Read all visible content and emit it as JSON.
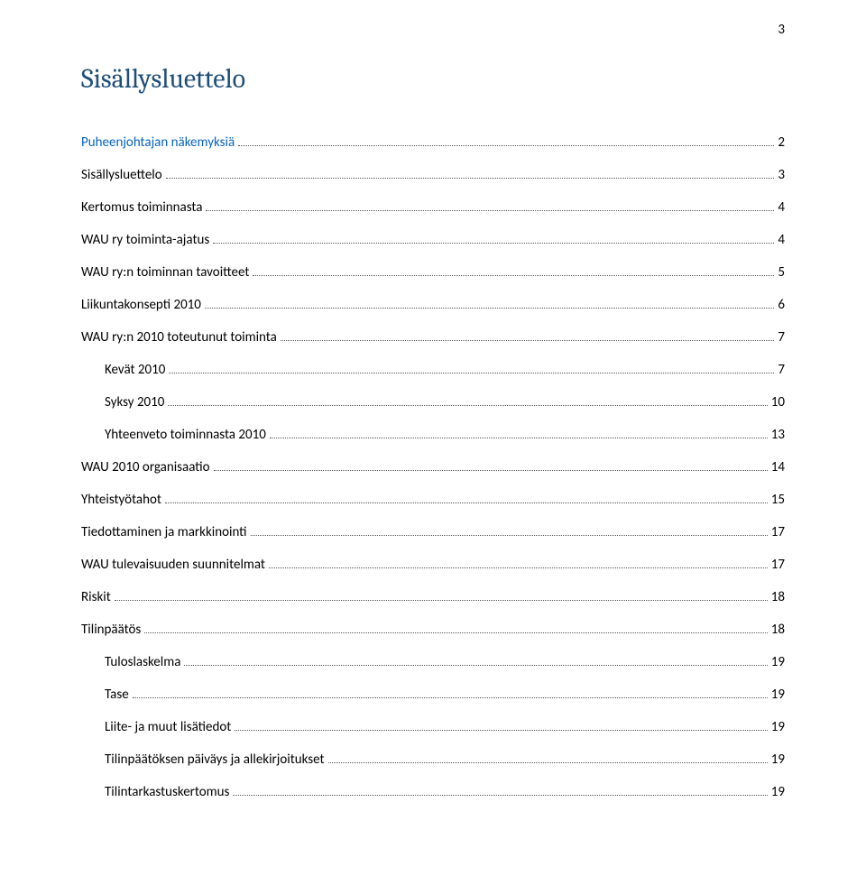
{
  "pageNumber": "3",
  "title": "Sisällysluettelo",
  "colors": {
    "titleColor": "#1f4e79",
    "linkColor": "#0563c1",
    "dotColor": "#555555",
    "textColor": "#000000",
    "background": "#ffffff"
  },
  "typography": {
    "titleFontSize": 30,
    "bodyFontSize": 15
  },
  "toc": {
    "entries": [
      {
        "label": "Puheenjohtajan näkemyksiä",
        "page": "2",
        "indent": 0,
        "link": true
      },
      {
        "label": "Sisällysluettelo",
        "page": "3",
        "indent": 0,
        "link": false
      },
      {
        "label": "Kertomus toiminnasta",
        "page": "4",
        "indent": 0,
        "link": false
      },
      {
        "label": "WAU ry toiminta-ajatus",
        "page": "4",
        "indent": 0,
        "link": false
      },
      {
        "label": "WAU ry:n toiminnan tavoitteet",
        "page": "5",
        "indent": 0,
        "link": false
      },
      {
        "label": "Liikuntakonsepti 2010",
        "page": "6",
        "indent": 0,
        "link": false
      },
      {
        "label": "WAU ry:n 2010 toteutunut toiminta",
        "page": "7",
        "indent": 0,
        "link": false
      },
      {
        "label": "Kevät 2010",
        "page": "7",
        "indent": 1,
        "link": false
      },
      {
        "label": "Syksy 2010",
        "page": "10",
        "indent": 1,
        "link": false
      },
      {
        "label": "Yhteenveto toiminnasta 2010",
        "page": "13",
        "indent": 1,
        "link": false
      },
      {
        "label": "WAU 2010 organisaatio",
        "page": "14",
        "indent": 0,
        "link": false
      },
      {
        "label": "Yhteistyötahot",
        "page": "15",
        "indent": 0,
        "link": false
      },
      {
        "label": "Tiedottaminen ja markkinointi",
        "page": "17",
        "indent": 0,
        "link": false
      },
      {
        "label": "WAU tulevaisuuden suunnitelmat",
        "page": "17",
        "indent": 0,
        "link": false
      },
      {
        "label": "Riskit",
        "page": "18",
        "indent": 0,
        "link": false
      },
      {
        "label": "Tilinpäätös",
        "page": "18",
        "indent": 0,
        "link": false
      },
      {
        "label": "Tuloslaskelma",
        "page": "19",
        "indent": 1,
        "link": false
      },
      {
        "label": "Tase",
        "page": "19",
        "indent": 1,
        "link": false
      },
      {
        "label": "Liite- ja muut lisätiedot",
        "page": "19",
        "indent": 1,
        "link": false
      },
      {
        "label": "Tilinpäätöksen päiväys ja allekirjoitukset",
        "page": "19",
        "indent": 1,
        "link": false
      },
      {
        "label": "Tilintarkastuskertomus",
        "page": "19",
        "indent": 1,
        "link": false
      }
    ]
  }
}
